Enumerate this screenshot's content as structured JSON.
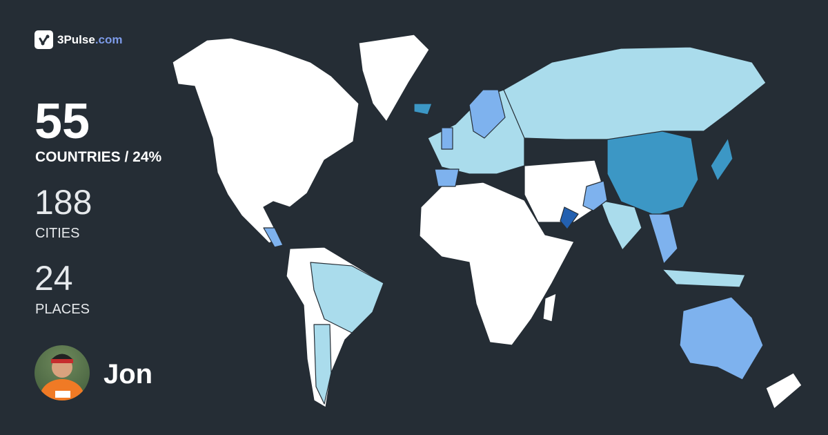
{
  "brand": {
    "name": "3Pulse",
    "tld": ".com",
    "icon": "pulse-check-icon",
    "tld_color": "#7d9be8"
  },
  "stats": {
    "countries": {
      "value": "55",
      "label": "COUNTRIES / 24%"
    },
    "cities": {
      "value": "188",
      "label": "CITIES"
    },
    "places": {
      "value": "24",
      "label": "PLACES"
    }
  },
  "user": {
    "name": "Jon",
    "avatar": "user-avatar-photo"
  },
  "map": {
    "background": "#252d35",
    "unvisited_color": "#ffffff",
    "visit_level_colors": [
      "#aadcec",
      "#7eb2ee",
      "#3c97c5",
      "#2360b0"
    ]
  }
}
